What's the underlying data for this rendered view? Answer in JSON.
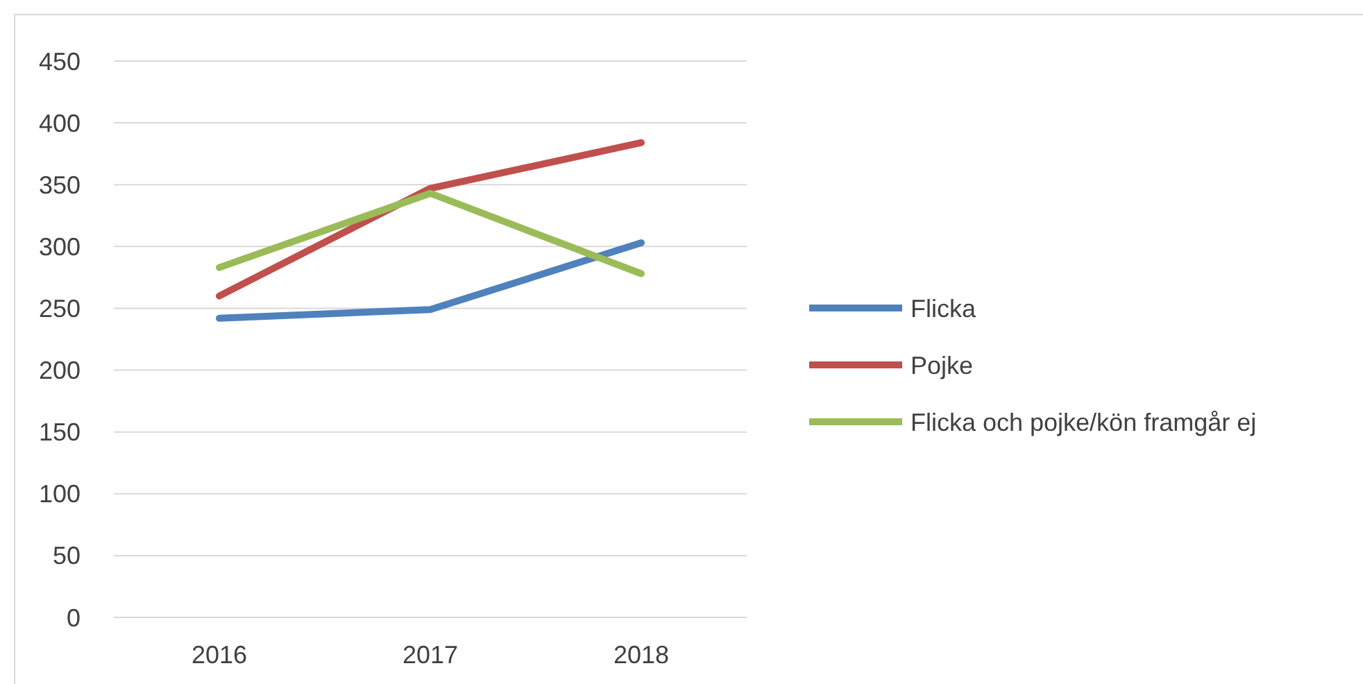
{
  "chart_data": {
    "type": "line",
    "categories": [
      "2016",
      "2017",
      "2018"
    ],
    "series": [
      {
        "name": "Flicka",
        "color": "#4f81bd",
        "values": [
          242,
          249,
          303
        ]
      },
      {
        "name": "Pojke",
        "color": "#c0504d",
        "values": [
          260,
          347,
          384
        ]
      },
      {
        "name": "Flicka och pojke/kön framgår ej",
        "color": "#9bbb59",
        "values": [
          283,
          343,
          278
        ]
      }
    ],
    "ylim": [
      0,
      450
    ],
    "yticks": [
      0,
      50,
      100,
      150,
      200,
      250,
      300,
      350,
      400,
      450
    ],
    "grid": "y",
    "legend": "right",
    "marker": "none",
    "line_style": "solid"
  }
}
